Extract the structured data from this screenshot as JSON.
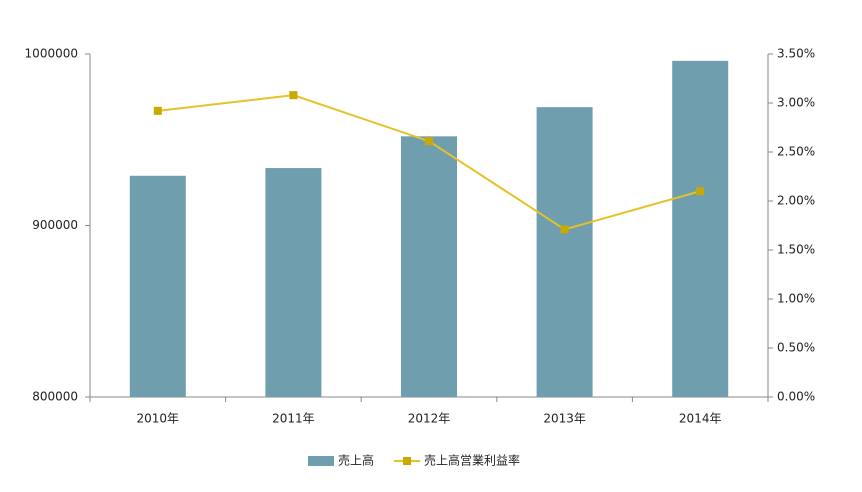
{
  "chart_data": {
    "type": "bar-line",
    "categories": [
      "2010年",
      "2011年",
      "2012年",
      "2013年",
      "2014年"
    ],
    "series": [
      {
        "name": "売上高",
        "color": "#6f9fae",
        "type": "bar",
        "values": [
          929000,
          933500,
          952000,
          969000,
          996000
        ]
      },
      {
        "name": "売上高営業利益率",
        "color": "#e6c12a",
        "type": "line",
        "axis": "y2",
        "values": [
          2.92,
          3.08,
          2.61,
          1.71,
          2.1
        ]
      }
    ],
    "ylim": [
      800000,
      1000000
    ],
    "yticks": [
      800000,
      900000,
      1000000
    ],
    "y2lim": [
      0,
      3.5
    ],
    "y2ticks": [
      {
        "value": 0,
        "label": "0.00%"
      },
      {
        "value": 0.5,
        "label": "0.50%"
      },
      {
        "value": 1,
        "label": "1.00%"
      },
      {
        "value": 1.5,
        "label": "1.50%"
      },
      {
        "value": 2,
        "label": "2.00%"
      },
      {
        "value": 2.5,
        "label": "2.50%"
      },
      {
        "value": 3,
        "label": "3.00%"
      },
      {
        "value": 3.5,
        "label": "3.50%"
      }
    ],
    "grid": false,
    "legend": "bottom"
  }
}
